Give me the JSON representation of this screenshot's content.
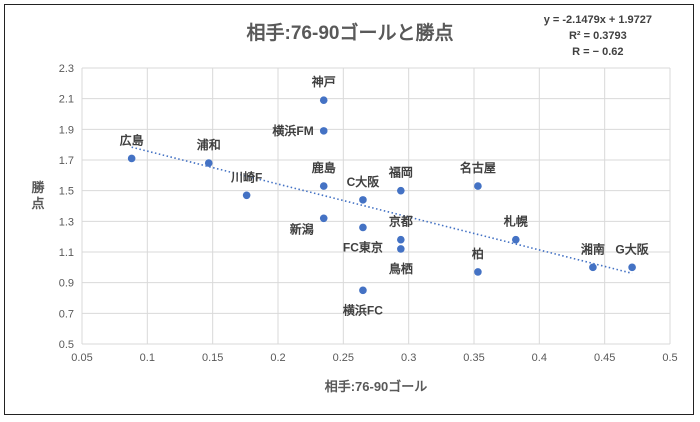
{
  "chart_data": {
    "type": "scatter",
    "title": "相手:76-90ゴールと勝点",
    "xlabel": "相手:76-90ゴール",
    "ylabel": "勝点",
    "xlim": [
      0.05,
      0.5
    ],
    "ylim": [
      0.5,
      2.3
    ],
    "xticks": [
      "0.05",
      "0.1",
      "0.15",
      "0.2",
      "0.25",
      "0.3",
      "0.35",
      "0.4",
      "0.45",
      "0.5"
    ],
    "yticks": [
      "0.5",
      "0.7",
      "0.9",
      "1.1",
      "1.3",
      "1.5",
      "1.7",
      "1.9",
      "2.1",
      "2.3"
    ],
    "grid": true,
    "point_color": "#4472C4",
    "points": [
      {
        "name": "広島",
        "x": 0.088,
        "y": 1.71,
        "label_pos": "above"
      },
      {
        "name": "浦和",
        "x": 0.147,
        "y": 1.68,
        "label_pos": "above"
      },
      {
        "name": "川崎F",
        "x": 0.176,
        "y": 1.47,
        "label_pos": "above"
      },
      {
        "name": "神戸",
        "x": 0.235,
        "y": 2.09,
        "label_pos": "above"
      },
      {
        "name": "横浜FM",
        "x": 0.235,
        "y": 1.89,
        "label_pos": "left"
      },
      {
        "name": "鹿島",
        "x": 0.235,
        "y": 1.53,
        "label_pos": "above"
      },
      {
        "name": "新潟",
        "x": 0.235,
        "y": 1.32,
        "label_pos": "below-left"
      },
      {
        "name": "C大阪",
        "x": 0.265,
        "y": 1.44,
        "label_pos": "above"
      },
      {
        "name": "FC東京",
        "x": 0.265,
        "y": 1.26,
        "label_pos": "below"
      },
      {
        "name": "横浜FC",
        "x": 0.265,
        "y": 0.85,
        "label_pos": "below"
      },
      {
        "name": "福岡",
        "x": 0.294,
        "y": 1.5,
        "label_pos": "above"
      },
      {
        "name": "京都",
        "x": 0.294,
        "y": 1.18,
        "label_pos": "above"
      },
      {
        "name": "鳥栖",
        "x": 0.294,
        "y": 1.12,
        "label_pos": "below"
      },
      {
        "name": "名古屋",
        "x": 0.353,
        "y": 1.53,
        "label_pos": "above"
      },
      {
        "name": "柏",
        "x": 0.353,
        "y": 0.97,
        "label_pos": "above"
      },
      {
        "name": "札幌",
        "x": 0.382,
        "y": 1.18,
        "label_pos": "above"
      },
      {
        "name": "湘南",
        "x": 0.441,
        "y": 1.0,
        "label_pos": "above"
      },
      {
        "name": "G大阪",
        "x": 0.471,
        "y": 1.0,
        "label_pos": "above"
      }
    ],
    "trendline": {
      "type": "linear",
      "slope": -2.1479,
      "intercept": 1.9727,
      "x_range": [
        0.088,
        0.471
      ],
      "equation": "y = -2.1479x + 1.9727",
      "r2": "R² = 0.3793",
      "r": "R =  − 0.62"
    }
  }
}
